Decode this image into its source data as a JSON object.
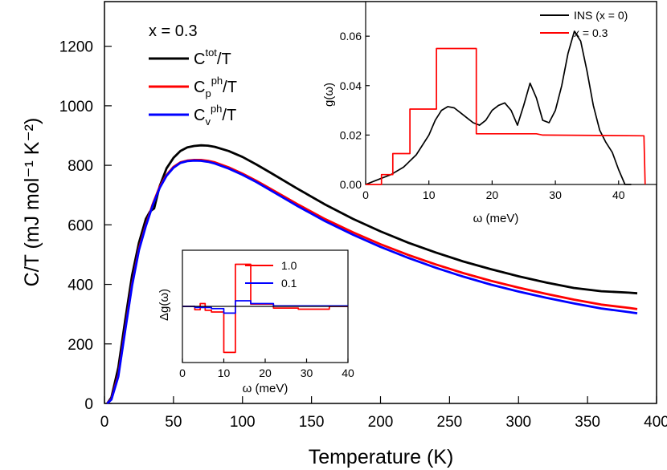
{
  "chart_data": [
    {
      "id": "main",
      "type": "line",
      "xlabel": "Temperature (K)",
      "ylabel": "C/T (mJ mol⁻¹ K⁻²)",
      "xlim": [
        0,
        400
      ],
      "ylim": [
        0,
        1350
      ],
      "xticks": [
        0,
        50,
        100,
        150,
        200,
        250,
        300,
        350,
        400
      ],
      "yticks": [
        0,
        200,
        400,
        600,
        800,
        1000,
        1200
      ],
      "legend_title": "x = 0.3",
      "legend_position": "top-left",
      "series": [
        {
          "name": "Ctot/T",
          "legend_base": "C",
          "legend_sup": "tot",
          "legend_tail": "/T",
          "color": "#000000",
          "x": [
            2,
            5,
            10,
            15,
            20,
            25,
            30,
            33,
            36,
            40,
            45,
            50,
            55,
            60,
            65,
            70,
            75,
            80,
            90,
            100,
            110,
            120,
            140,
            160,
            180,
            200,
            220,
            240,
            260,
            280,
            300,
            320,
            340,
            360,
            380,
            386
          ],
          "y": [
            0,
            20,
            120,
            280,
            430,
            540,
            620,
            645,
            655,
            730,
            790,
            825,
            848,
            860,
            865,
            867,
            866,
            862,
            848,
            828,
            803,
            776,
            721,
            668,
            620,
            578,
            540,
            507,
            477,
            451,
            427,
            406,
            388,
            377,
            372,
            370
          ]
        },
        {
          "name": "Cpph/T",
          "legend_base": "C",
          "legend_sub": "p",
          "legend_sup": "ph",
          "legend_tail": "/T",
          "color": "#ff0000",
          "x": [
            2,
            5,
            10,
            15,
            20,
            25,
            30,
            35,
            40,
            45,
            50,
            55,
            60,
            65,
            70,
            75,
            80,
            90,
            100,
            110,
            120,
            140,
            160,
            180,
            200,
            220,
            240,
            260,
            280,
            300,
            320,
            340,
            360,
            380,
            386
          ],
          "y": [
            0,
            15,
            95,
            250,
            400,
            520,
            600,
            670,
            728,
            768,
            795,
            810,
            816,
            818,
            818,
            815,
            810,
            793,
            772,
            748,
            722,
            669,
            619,
            575,
            535,
            499,
            467,
            438,
            412,
            389,
            368,
            349,
            332,
            321,
            317
          ]
        },
        {
          "name": "Cvph/T",
          "legend_base": "C",
          "legend_sub": "v",
          "legend_sup": "ph",
          "legend_tail": "/T",
          "color": "#0000ff",
          "x": [
            2,
            5,
            10,
            15,
            20,
            25,
            30,
            35,
            40,
            45,
            50,
            55,
            60,
            65,
            70,
            75,
            80,
            90,
            100,
            110,
            120,
            140,
            160,
            180,
            200,
            220,
            240,
            260,
            280,
            300,
            320,
            340,
            360,
            380,
            386
          ],
          "y": [
            0,
            13,
            90,
            245,
            395,
            515,
            596,
            666,
            724,
            765,
            792,
            808,
            814,
            816,
            815,
            812,
            806,
            789,
            768,
            744,
            717,
            663,
            612,
            567,
            526,
            489,
            456,
            426,
            399,
            376,
            355,
            336,
            319,
            307,
            303
          ]
        }
      ]
    },
    {
      "id": "inset-dos",
      "type": "line",
      "xlabel": "ω (meV)",
      "ylabel": "g(ω)",
      "xlim": [
        0,
        46
      ],
      "ylim": [
        0,
        0.074
      ],
      "xticks": [
        0,
        10,
        20,
        30,
        40
      ],
      "yticks": [
        0.0,
        0.02,
        0.04,
        0.06
      ],
      "ytick_labels": [
        "0.00",
        "0.02",
        "0.04",
        "0.06"
      ],
      "legend_position": "top-right",
      "series": [
        {
          "name": "INS (x = 0)",
          "color": "#000000",
          "x": [
            0,
            2,
            4,
            6,
            8,
            10,
            11,
            12,
            13,
            14,
            15,
            16,
            17,
            18,
            19,
            20,
            21,
            22,
            23,
            24,
            25,
            26,
            27,
            28,
            29,
            30,
            31,
            32,
            33,
            34,
            35,
            36,
            37,
            38,
            39,
            40,
            41,
            42
          ],
          "y": [
            0,
            0.002,
            0.004,
            0.007,
            0.012,
            0.02,
            0.026,
            0.03,
            0.0315,
            0.031,
            0.029,
            0.027,
            0.025,
            0.024,
            0.026,
            0.03,
            0.032,
            0.033,
            0.03,
            0.024,
            0.032,
            0.041,
            0.035,
            0.026,
            0.025,
            0.03,
            0.04,
            0.053,
            0.062,
            0.058,
            0.046,
            0.032,
            0.022,
            0.017,
            0.013,
            0.006,
            0.0,
            0.0
          ]
        },
        {
          "name": "x = 0.3",
          "color": "#ff0000",
          "x": [
            0,
            2.5,
            2.5,
            4.3,
            4.3,
            7,
            7,
            11.2,
            11.2,
            17.5,
            17.5,
            27,
            28,
            44,
            44.2
          ],
          "y": [
            0,
            0,
            0.004,
            0.004,
            0.0125,
            0.0125,
            0.0305,
            0.0305,
            0.055,
            0.055,
            0.0205,
            0.0205,
            0.02,
            0.0197,
            0.0
          ]
        }
      ]
    },
    {
      "id": "inset-delta",
      "type": "line",
      "xlabel": "ω (meV)",
      "ylabel": "Δg(ω)",
      "xlim": [
        0,
        40
      ],
      "ylim": [
        -0.1,
        0.1
      ],
      "xticks": [
        0,
        10,
        20,
        30,
        40
      ],
      "legend_position": "top-right",
      "series": [
        {
          "name": "1.0",
          "color": "#ff0000",
          "x": [
            0,
            3,
            3,
            4.3,
            4.3,
            5.5,
            5.5,
            7,
            7,
            10,
            10,
            12.8,
            12.8,
            16.5,
            16.5,
            22,
            22,
            28,
            28,
            35.5,
            35.5,
            40
          ],
          "y": [
            0,
            0,
            -0.006,
            -0.006,
            0.005,
            0.005,
            -0.007,
            -0.007,
            -0.01,
            -0.01,
            -0.082,
            -0.082,
            0.075,
            0.075,
            0.004,
            0.004,
            -0.003,
            -0.003,
            -0.005,
            -0.005,
            0,
            0
          ]
        },
        {
          "name": "0.1",
          "color": "#0000ff",
          "x": [
            0,
            3,
            3,
            7,
            7,
            10,
            10,
            12.8,
            12.8,
            16.5,
            16.5,
            22,
            22,
            40
          ],
          "y": [
            0,
            0,
            -0.002,
            -0.002,
            -0.004,
            -0.004,
            -0.012,
            -0.012,
            0.01,
            0.01,
            0.005,
            0.005,
            0.001,
            0.001
          ]
        },
        {
          "name": "",
          "color": "#000000",
          "x": [
            0,
            40
          ],
          "y": [
            0,
            0
          ]
        }
      ]
    }
  ]
}
